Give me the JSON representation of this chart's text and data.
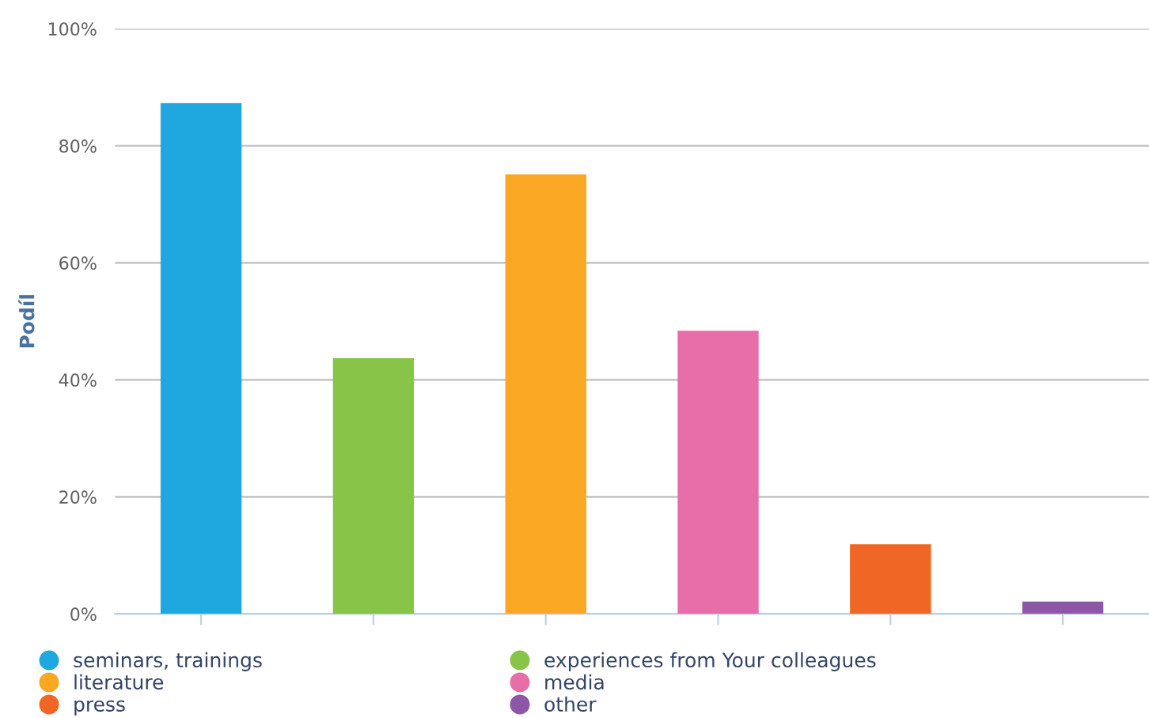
{
  "chart_data": {
    "type": "bar",
    "ylabel": "Podíl",
    "categories": [
      null,
      null,
      null,
      null,
      null,
      null
    ],
    "series": [
      {
        "name": "seminars, trainings",
        "color": "#1fa8e0",
        "values": [
          87.3,
          null,
          null,
          null,
          null,
          null
        ]
      },
      {
        "name": "experiences from Your colleagues",
        "color": "#88c447",
        "values": [
          null,
          43.7,
          null,
          null,
          null,
          null
        ]
      },
      {
        "name": "literature",
        "color": "#faa723",
        "values": [
          null,
          null,
          75.1,
          null,
          null,
          null
        ]
      },
      {
        "name": "media",
        "color": "#e76ea9",
        "values": [
          null,
          null,
          null,
          48.4,
          null,
          null
        ]
      },
      {
        "name": "press",
        "color": "#f06624",
        "values": [
          null,
          null,
          null,
          null,
          11.9,
          null
        ]
      },
      {
        "name": "other",
        "color": "#8e56a7",
        "values": [
          null,
          null,
          null,
          null,
          null,
          2.1
        ]
      }
    ],
    "ylim": [
      0,
      100
    ],
    "yticks": [
      {
        "value": 0,
        "label": "0%"
      },
      {
        "value": 20,
        "label": "20%"
      },
      {
        "value": 40,
        "label": "40%"
      },
      {
        "value": 60,
        "label": "60%"
      },
      {
        "value": 80,
        "label": "80%"
      },
      {
        "value": 100,
        "label": "100%"
      }
    ],
    "grid": "y",
    "legend": "bottom"
  }
}
